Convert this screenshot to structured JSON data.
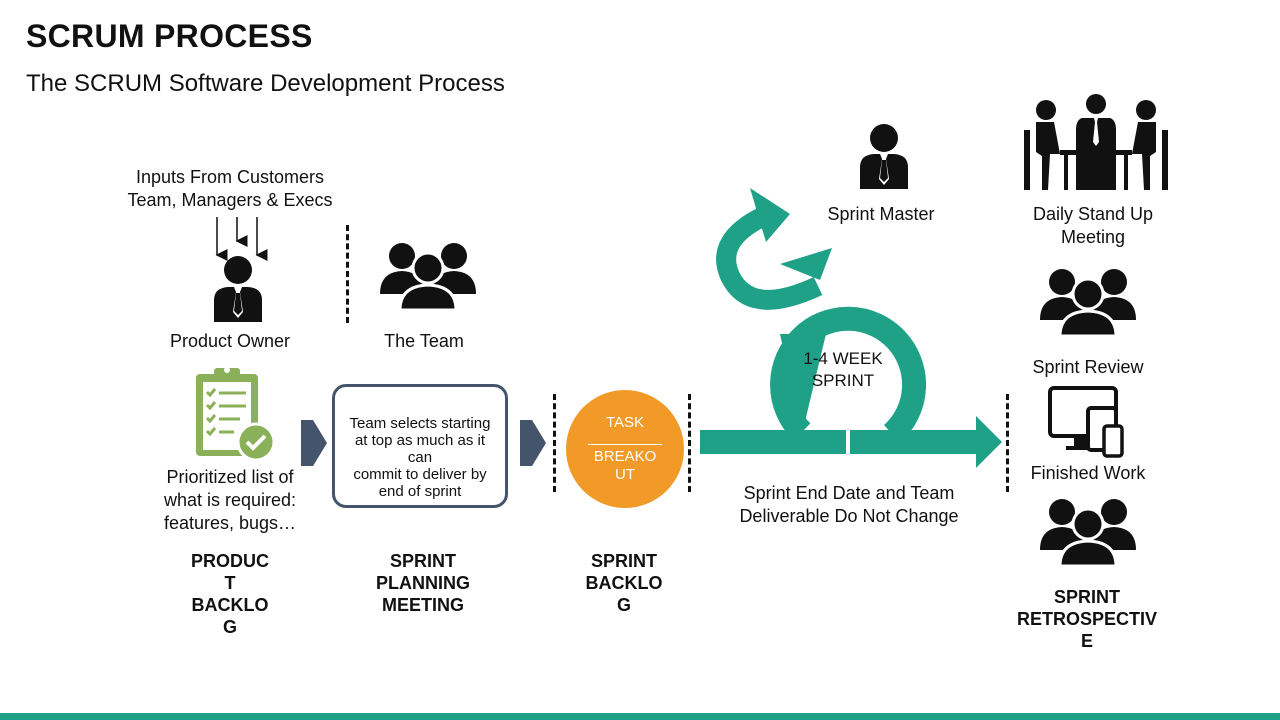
{
  "title": "SCRUM PROCESS",
  "subtitle": "The SCRUM Software Development Process",
  "inputs": "Inputs From Customers\nTeam, Managers & Execs",
  "product_owner": "Product Owner",
  "the_team": "The Team",
  "prioritized": "Prioritized list of\nwhat is required:\nfeatures, bugs…",
  "planning_box": "Team selects starting\nat top as much as it\ncan\ncommit to deliver by\nend of sprint",
  "task_top": "TASK",
  "task_bottom": "BREAKO\nUT",
  "sprint_cycle": "1-4 WEEK\nSPRINT",
  "sprint_note": "Sprint End Date and Team\nDeliverable Do Not Change",
  "sprint_master": "Sprint Master",
  "daily_standup": "Daily Stand Up\nMeeting",
  "sprint_review": "Sprint Review",
  "finished_work": "Finished Work",
  "stages": {
    "product_backlog": "PRODUC\nT\nBACKLO\nG",
    "sprint_planning": "SPRINT\nPLANNING\nMEETING",
    "sprint_backlog": "SPRINT\nBACKLO\nG",
    "sprint_retro": "SPRINT\nRETROSPECTIV\nE"
  },
  "colors": {
    "teal": "#1fa187",
    "orange": "#f19a28",
    "green": "#8bb05a",
    "slate": "#44546a"
  }
}
